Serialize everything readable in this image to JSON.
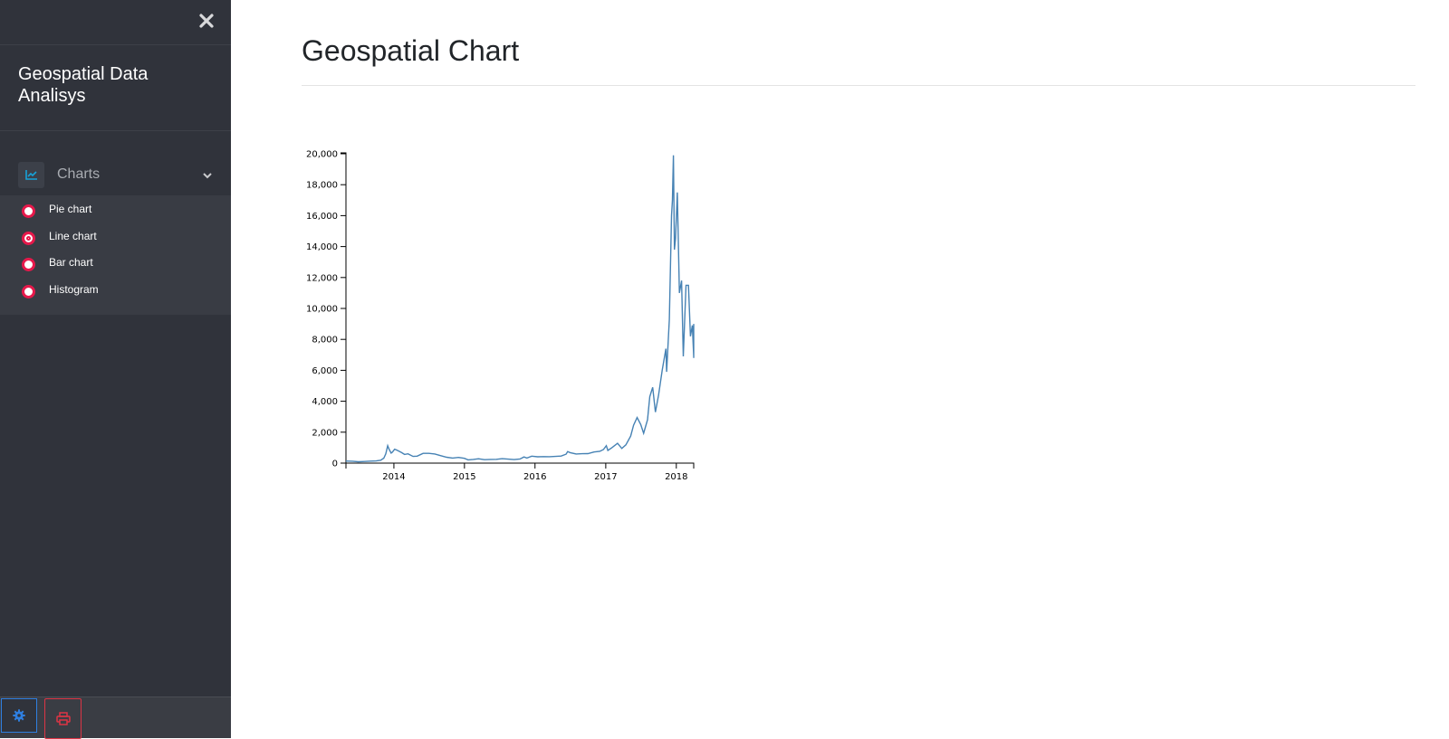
{
  "sidebar": {
    "brand_title": "Geospatial Data Analisys",
    "group": {
      "label": "Charts",
      "icon": "line-chart-icon",
      "items": [
        {
          "label": "Pie chart",
          "selected": false
        },
        {
          "label": "Line chart",
          "selected": true
        },
        {
          "label": "Bar chart",
          "selected": false
        },
        {
          "label": "Histogram",
          "selected": false
        }
      ]
    },
    "footer": {
      "settings_icon": "gear-icon",
      "print_icon": "printer-icon"
    }
  },
  "main": {
    "title": "Geospatial Chart"
  },
  "colors": {
    "sidebar_bg": "#30333b",
    "accent_red": "#e6194b",
    "accent_blue": "#2f7fe0",
    "line": "#4682b4"
  },
  "chart_data": {
    "type": "line",
    "title": "",
    "xlabel": "",
    "ylabel": "",
    "ylim": [
      0,
      20000
    ],
    "xlim": [
      "2013-04-28",
      "2018-04-01"
    ],
    "x_ticks": [
      "2014",
      "2015",
      "2016",
      "2017",
      "2018"
    ],
    "y_ticks": [
      "0",
      "2,000",
      "4,000",
      "6,000",
      "8,000",
      "10,000",
      "12,000",
      "14,000",
      "16,000",
      "18,000",
      "20,000"
    ],
    "series": [
      {
        "color": "#4682b4",
        "points": [
          [
            "2013-04-28",
            135
          ],
          [
            "2013-06-01",
            120
          ],
          [
            "2013-07-01",
            90
          ],
          [
            "2013-08-01",
            105
          ],
          [
            "2013-09-01",
            130
          ],
          [
            "2013-10-01",
            140
          ],
          [
            "2013-10-25",
            190
          ],
          [
            "2013-11-10",
            320
          ],
          [
            "2013-11-20",
            600
          ],
          [
            "2013-11-30",
            1130
          ],
          [
            "2013-12-07",
            900
          ],
          [
            "2013-12-18",
            650
          ],
          [
            "2013-12-25",
            720
          ],
          [
            "2014-01-05",
            900
          ],
          [
            "2014-01-20",
            820
          ],
          [
            "2014-02-10",
            680
          ],
          [
            "2014-02-25",
            560
          ],
          [
            "2014-03-15",
            600
          ],
          [
            "2014-04-10",
            430
          ],
          [
            "2014-05-01",
            450
          ],
          [
            "2014-06-01",
            630
          ],
          [
            "2014-07-01",
            630
          ],
          [
            "2014-08-01",
            590
          ],
          [
            "2014-09-01",
            480
          ],
          [
            "2014-10-01",
            380
          ],
          [
            "2014-11-01",
            330
          ],
          [
            "2014-12-01",
            370
          ],
          [
            "2015-01-01",
            310
          ],
          [
            "2015-01-20",
            210
          ],
          [
            "2015-02-15",
            240
          ],
          [
            "2015-03-15",
            280
          ],
          [
            "2015-04-15",
            225
          ],
          [
            "2015-05-15",
            237
          ],
          [
            "2015-06-15",
            245
          ],
          [
            "2015-07-15",
            285
          ],
          [
            "2015-08-15",
            260
          ],
          [
            "2015-09-15",
            230
          ],
          [
            "2015-10-15",
            265
          ],
          [
            "2015-11-05",
            400
          ],
          [
            "2015-11-20",
            330
          ],
          [
            "2015-12-15",
            450
          ],
          [
            "2016-01-15",
            410
          ],
          [
            "2016-02-15",
            420
          ],
          [
            "2016-03-15",
            415
          ],
          [
            "2016-04-15",
            430
          ],
          [
            "2016-05-15",
            455
          ],
          [
            "2016-06-10",
            580
          ],
          [
            "2016-06-18",
            750
          ],
          [
            "2016-07-01",
            680
          ],
          [
            "2016-08-01",
            590
          ],
          [
            "2016-09-01",
            610
          ],
          [
            "2016-10-01",
            615
          ],
          [
            "2016-11-01",
            720
          ],
          [
            "2016-12-01",
            760
          ],
          [
            "2016-12-20",
            880
          ],
          [
            "2017-01-04",
            1130
          ],
          [
            "2017-01-12",
            820
          ],
          [
            "2017-02-01",
            990
          ],
          [
            "2017-03-03",
            1280
          ],
          [
            "2017-03-25",
            950
          ],
          [
            "2017-04-15",
            1180
          ],
          [
            "2017-05-10",
            1750
          ],
          [
            "2017-05-25",
            2450
          ],
          [
            "2017-06-12",
            2950
          ],
          [
            "2017-07-01",
            2500
          ],
          [
            "2017-07-16",
            1930
          ],
          [
            "2017-08-05",
            2800
          ],
          [
            "2017-08-17",
            4300
          ],
          [
            "2017-09-01",
            4900
          ],
          [
            "2017-09-15",
            3300
          ],
          [
            "2017-10-01",
            4400
          ],
          [
            "2017-10-20",
            6000
          ],
          [
            "2017-11-08",
            7400
          ],
          [
            "2017-11-12",
            5900
          ],
          [
            "2017-11-26",
            9300
          ],
          [
            "2017-12-07",
            16000
          ],
          [
            "2017-12-12",
            17000
          ],
          [
            "2017-12-17",
            19900
          ],
          [
            "2017-12-22",
            13800
          ],
          [
            "2017-12-28",
            14500
          ],
          [
            "2018-01-06",
            17500
          ],
          [
            "2018-01-17",
            11000
          ],
          [
            "2018-01-28",
            11800
          ],
          [
            "2018-02-06",
            6900
          ],
          [
            "2018-02-20",
            11500
          ],
          [
            "2018-03-05",
            11500
          ],
          [
            "2018-03-15",
            8200
          ],
          [
            "2018-03-25",
            8900
          ],
          [
            "2018-04-01",
            6900
          ],
          [
            "2018-04-10",
            6800
          ],
          [
            "2018-04-25",
            9000
          ]
        ]
      }
    ]
  }
}
